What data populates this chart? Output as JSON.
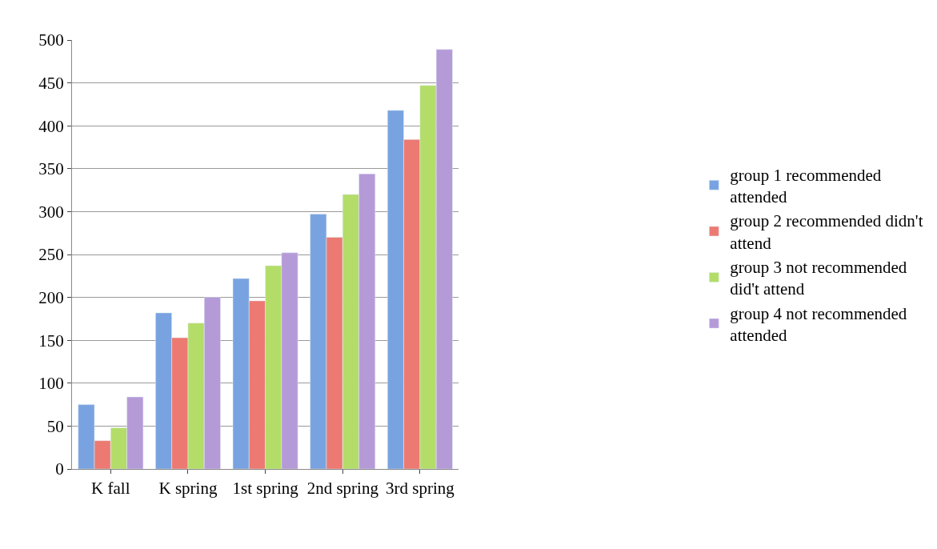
{
  "chart_data": {
    "type": "bar",
    "categories": [
      "K fall",
      "K spring",
      "1st spring",
      "2nd spring",
      "3rd spring"
    ],
    "series": [
      {
        "name": "group 1 recommended attended",
        "color": "#79a3e0",
        "values": [
          75,
          182,
          222,
          297,
          418
        ]
      },
      {
        "name": "group 2 recommended didn't attend",
        "color": "#ec7a72",
        "values": [
          33,
          153,
          196,
          270,
          384
        ]
      },
      {
        "name": "group 3 not recommended did't attend",
        "color": "#b3dd68",
        "values": [
          48,
          170,
          237,
          320,
          447
        ]
      },
      {
        "name": "group 4 not recommended attended",
        "color": "#b59ad8",
        "values": [
          84,
          200,
          252,
          344,
          489
        ]
      }
    ],
    "ylim": [
      0,
      500
    ],
    "yticks": [
      0,
      50,
      100,
      150,
      200,
      250,
      300,
      350,
      400,
      450,
      500
    ],
    "grid": "y",
    "legend": "right"
  }
}
